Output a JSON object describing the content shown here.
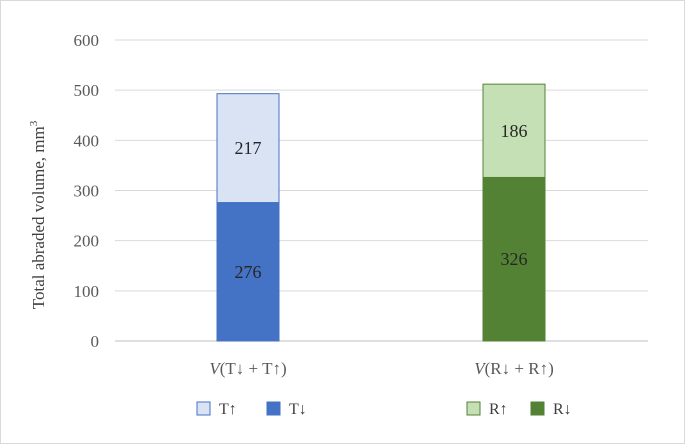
{
  "chart_data": {
    "type": "bar",
    "stacked": true,
    "ylabel": "Total abraded volume, mm",
    "ylabel_sup": "3",
    "ylim": [
      0,
      600
    ],
    "yticks": [
      0,
      100,
      200,
      300,
      400,
      500,
      600
    ],
    "grid": true,
    "categories": [
      {
        "prefix": "V",
        "label": "(T↓ + T↑)"
      },
      {
        "prefix": "V",
        "label": "(R↓ + R↑)"
      }
    ],
    "stacks": [
      {
        "segments": [
          {
            "name": "T↓",
            "value": 276,
            "label": "276",
            "color": "#4472c4"
          },
          {
            "name": "T↑",
            "value": 217,
            "label": "217",
            "color": "#dae3f3"
          }
        ]
      },
      {
        "segments": [
          {
            "name": "R↓",
            "value": 326,
            "label": "326",
            "color": "#548235"
          },
          {
            "name": "R↑",
            "value": 186,
            "label": "186",
            "color": "#c5e0b4"
          }
        ]
      }
    ],
    "legend_position": "bottom",
    "legend": [
      [
        {
          "name": "T↑",
          "color": "#dae3f3",
          "edge": "#4472c4"
        },
        {
          "name": "T↓",
          "color": "#4472c4",
          "edge": "#4472c4"
        }
      ],
      [
        {
          "name": "R↑",
          "color": "#c5e0b4",
          "edge": "#548235"
        },
        {
          "name": "R↓",
          "color": "#548235",
          "edge": "#548235"
        }
      ]
    ]
  }
}
